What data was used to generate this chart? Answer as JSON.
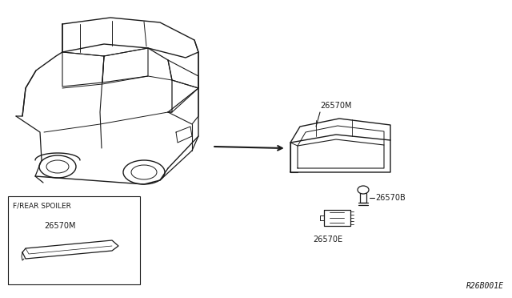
{
  "background_color": "#ffffff",
  "diagram_code": "R26B001E",
  "parts": [
    {
      "id": "26570M",
      "label": "26570M"
    },
    {
      "id": "26570B",
      "label": "26570B"
    },
    {
      "id": "26570E",
      "label": "26570E"
    }
  ],
  "inset_label": "F/REAR SPOILER",
  "inset_part": "26570M",
  "line_color": "#1a1a1a",
  "text_color": "#1a1a1a",
  "font_size_label": 7.0,
  "font_size_code": 7.0,
  "figsize": [
    6.4,
    3.72
  ],
  "dpi": 100
}
